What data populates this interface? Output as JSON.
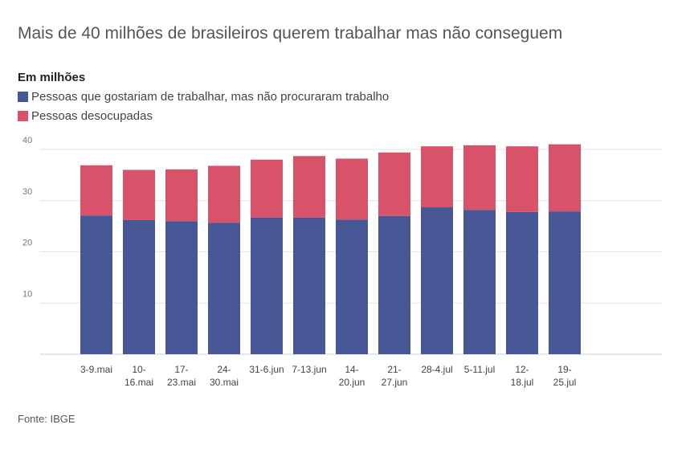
{
  "chart_data": {
    "type": "bar",
    "stacked": true,
    "title": "Mais de 40 milhões de brasileiros querem trabalhar mas não conseguem",
    "subtitle": "Em milhões",
    "source": "Fonte: IBGE",
    "categories": [
      [
        "3-9.mai"
      ],
      [
        "10-",
        "16.mai"
      ],
      [
        "17-",
        "23.mai"
      ],
      [
        "24-",
        "30.mai"
      ],
      [
        "31-6.jun"
      ],
      [
        "7-13.jun"
      ],
      [
        "14-",
        "20.jun"
      ],
      [
        "21-",
        "27.jun"
      ],
      [
        "28-4.jul"
      ],
      [
        "5-11.jul"
      ],
      [
        "12-",
        "18.jul"
      ],
      [
        "19-",
        "25.jul"
      ]
    ],
    "series": [
      {
        "name": "Pessoas que gostariam de trabalhar, mas não procuraram trabalho",
        "color": "#475796",
        "values": [
          27.1,
          26.2,
          26.0,
          25.7,
          26.7,
          26.7,
          26.3,
          27.0,
          28.7,
          28.2,
          27.8,
          27.9
        ]
      },
      {
        "name": "Pessoas desocupadas",
        "color": "#d8536a",
        "values": [
          9.8,
          9.8,
          10.1,
          11.1,
          11.3,
          12.0,
          11.9,
          12.4,
          11.9,
          12.6,
          12.8,
          13.1
        ]
      }
    ],
    "ylim": [
      0,
      40
    ],
    "yticks": [
      10,
      20,
      30,
      40
    ],
    "grid": true,
    "legend": "top-left"
  }
}
